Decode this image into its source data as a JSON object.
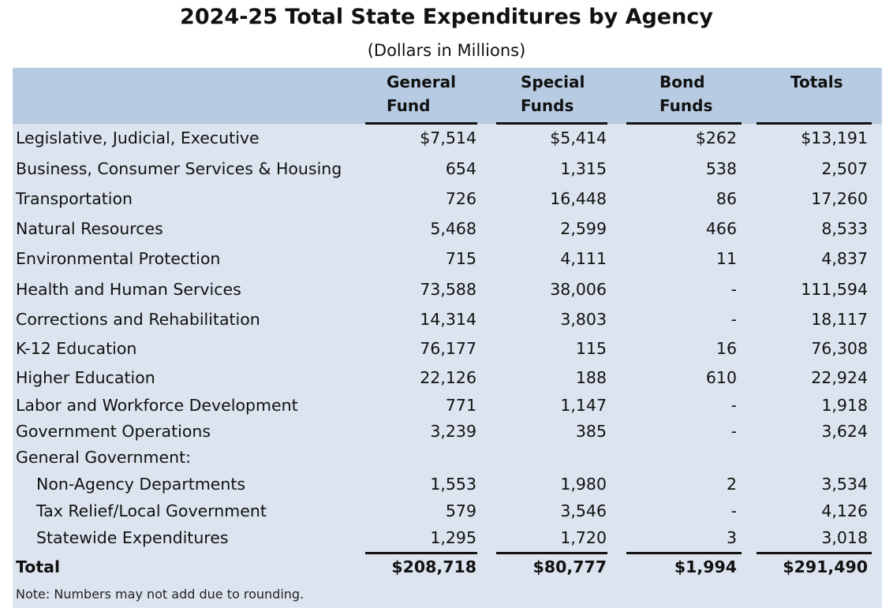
{
  "title": "2024-25 Total State Expenditures by Agency",
  "subtitle": "(Dollars in Millions)",
  "columns": [
    {
      "line1": "General",
      "line2": "Fund"
    },
    {
      "line1": "Special",
      "line2": "Funds"
    },
    {
      "line1": "Bond",
      "line2": "Funds"
    },
    {
      "line1": "",
      "line2": "Totals"
    }
  ],
  "rows": [
    {
      "label": "Legislative, Judicial, Executive",
      "general": "$7,514",
      "special": "$5,414",
      "bond": "$262",
      "total": "$13,191"
    },
    {
      "label": "Business, Consumer Services & Housing",
      "general": "654",
      "special": "1,315",
      "bond": "538",
      "total": "2,507"
    },
    {
      "label": "Transportation",
      "general": "726",
      "special": "16,448",
      "bond": "86",
      "total": "17,260"
    },
    {
      "label": "Natural Resources",
      "general": "5,468",
      "special": "2,599",
      "bond": "466",
      "total": "8,533"
    },
    {
      "label": "Environmental Protection",
      "general": "715",
      "special": "4,111",
      "bond": "11",
      "total": "4,837"
    },
    {
      "label": "Health and Human Services",
      "general": "73,588",
      "special": "38,006",
      "bond": "-",
      "total": "111,594"
    },
    {
      "label": "Corrections and Rehabilitation",
      "general": "14,314",
      "special": "3,803",
      "bond": "-",
      "total": "18,117"
    },
    {
      "label": "K-12 Education",
      "general": "76,177",
      "special": "115",
      "bond": "16",
      "total": "76,308"
    },
    {
      "label": "Higher Education",
      "general": "22,126",
      "special": "188",
      "bond": "610",
      "total": "22,924"
    },
    {
      "label": "Labor and Workforce Development",
      "general": "771",
      "special": "1,147",
      "bond": "-",
      "total": "1,918"
    },
    {
      "label": "Government Operations",
      "general": "3,239",
      "special": "385",
      "bond": "-",
      "total": "3,624"
    },
    {
      "label": "General Government:",
      "general": "",
      "special": "",
      "bond": "",
      "total": ""
    },
    {
      "label": "Non-Agency Departments",
      "general": "1,553",
      "special": "1,980",
      "bond": "2",
      "total": "3,534"
    },
    {
      "label": "Tax Relief/Local Government",
      "general": "579",
      "special": "3,546",
      "bond": "-",
      "total": "4,126"
    },
    {
      "label": "Statewide Expenditures",
      "general": "1,295",
      "special": "1,720",
      "bond": "3",
      "total": "3,018"
    }
  ],
  "total_row": {
    "label": "Total",
    "general": "$208,718",
    "special": "$80,777",
    "bond": "$1,994",
    "total": "$291,490"
  },
  "note": "Note: Numbers may not add due to rounding."
}
